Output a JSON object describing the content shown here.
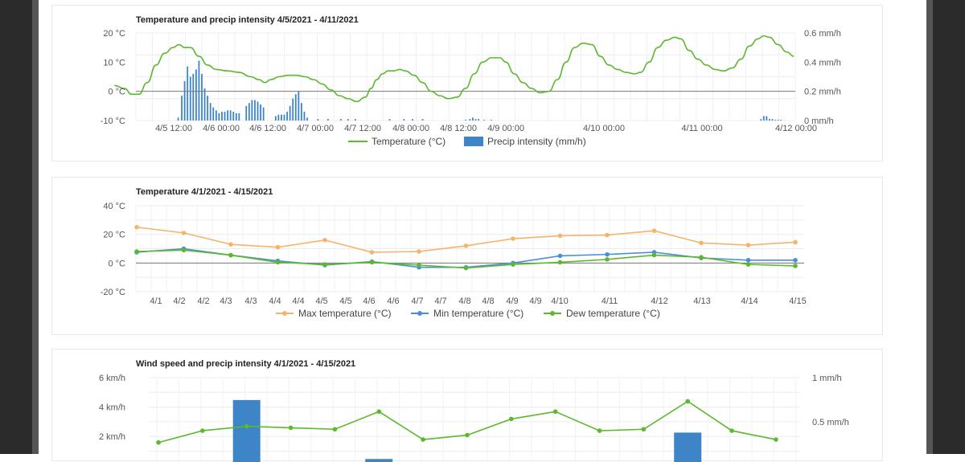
{
  "colors": {
    "temp": "#5cb82e",
    "precip": "#3d85c6",
    "max": "#f5b46b",
    "min": "#4a90d9",
    "dew": "#5cb82e"
  },
  "chart_data": [
    {
      "type": "line+bar",
      "title": "Temperature and precip intensity 4/5/2021 - 4/11/2021",
      "x_ticks": [
        "4/5 12:00",
        "4/6 00:00",
        "4/6 12:00",
        "4/7 00:00",
        "4/7 12:00",
        "4/8 00:00",
        "4/8 12:00",
        "4/9 00:00",
        "4/10 00:00",
        "4/11 00:00",
        "4/12 00:00"
      ],
      "y_left_ticks": [
        "20 °C",
        "10 °C",
        "0 °C",
        "-10 °C"
      ],
      "y_right_ticks": [
        "0.6 mm/h",
        "0.4 mm/h",
        "0.2 mm/h",
        "0 mm/h"
      ],
      "ylim_left": [
        -10,
        20
      ],
      "ylim_right": [
        0,
        0.6
      ],
      "legend": [
        "Temperature (°C)",
        "Precip intensity (mm/h)"
      ],
      "temperature": [
        [
          -15,
          2
        ],
        [
          -8,
          1
        ],
        [
          -3,
          -1
        ],
        [
          2,
          -1
        ],
        [
          8,
          3
        ],
        [
          14,
          9
        ],
        [
          20,
          13
        ],
        [
          26,
          15
        ],
        [
          30,
          16
        ],
        [
          34,
          15
        ],
        [
          38,
          15
        ],
        [
          44,
          12
        ],
        [
          50,
          9
        ],
        [
          56,
          7.5
        ],
        [
          64,
          7
        ],
        [
          72,
          6.5
        ],
        [
          80,
          5
        ],
        [
          86,
          4
        ],
        [
          90,
          3
        ],
        [
          94,
          4
        ],
        [
          100,
          5
        ],
        [
          106,
          5.5
        ],
        [
          112,
          5.5
        ],
        [
          118,
          5
        ],
        [
          124,
          4
        ],
        [
          130,
          2.5
        ],
        [
          136,
          0.5
        ],
        [
          142,
          -1.5
        ],
        [
          148,
          -2.5
        ],
        [
          154,
          -3.5
        ],
        [
          160,
          -2
        ],
        [
          164,
          1
        ],
        [
          168,
          4
        ],
        [
          172,
          6
        ],
        [
          176,
          7
        ],
        [
          180,
          7
        ],
        [
          184,
          7.5
        ],
        [
          188,
          7
        ],
        [
          194,
          5.5
        ],
        [
          200,
          3
        ],
        [
          206,
          0
        ],
        [
          212,
          -1.5
        ],
        [
          218,
          -2.5
        ],
        [
          224,
          -2
        ],
        [
          230,
          1
        ],
        [
          236,
          6
        ],
        [
          242,
          10
        ],
        [
          248,
          11.5
        ],
        [
          254,
          11.5
        ],
        [
          258,
          10
        ],
        [
          264,
          6
        ],
        [
          270,
          3
        ],
        [
          276,
          1
        ],
        [
          282,
          -0.5
        ],
        [
          288,
          0
        ],
        [
          294,
          4
        ],
        [
          300,
          10
        ],
        [
          306,
          15
        ],
        [
          312,
          16.5
        ],
        [
          318,
          16
        ],
        [
          324,
          12
        ],
        [
          330,
          9
        ],
        [
          336,
          7.5
        ],
        [
          342,
          6.5
        ],
        [
          348,
          6
        ],
        [
          352,
          6.5
        ],
        [
          358,
          10
        ],
        [
          364,
          15
        ],
        [
          370,
          17.5
        ],
        [
          376,
          18.5
        ],
        [
          380,
          18
        ],
        [
          386,
          14
        ],
        [
          392,
          11
        ],
        [
          398,
          9
        ],
        [
          404,
          7.5
        ],
        [
          410,
          7
        ],
        [
          416,
          8
        ],
        [
          422,
          11
        ],
        [
          428,
          15.5
        ],
        [
          434,
          18
        ],
        [
          438,
          19
        ],
        [
          442,
          18.5
        ],
        [
          448,
          16
        ],
        [
          454,
          13.5
        ],
        [
          459,
          12
        ]
      ],
      "precip": [
        [
          29.5,
          0.02
        ],
        [
          32,
          0.17
        ],
        [
          34,
          0.27
        ],
        [
          36,
          0.37
        ],
        [
          38,
          0.3
        ],
        [
          40,
          0.32
        ],
        [
          42,
          0.35
        ],
        [
          44,
          0.41
        ],
        [
          46,
          0.32
        ],
        [
          48,
          0.22
        ],
        [
          50,
          0.17
        ],
        [
          52,
          0.12
        ],
        [
          54,
          0.09
        ],
        [
          56,
          0.07
        ],
        [
          58,
          0.05
        ],
        [
          60,
          0.06
        ],
        [
          62,
          0.06
        ],
        [
          64,
          0.07
        ],
        [
          66,
          0.07
        ],
        [
          68,
          0.06
        ],
        [
          70,
          0.05
        ],
        [
          72,
          0.05
        ],
        [
          77,
          0.1
        ],
        [
          79,
          0.12
        ],
        [
          81,
          0.14
        ],
        [
          83,
          0.14
        ],
        [
          85,
          0.13
        ],
        [
          87,
          0.11
        ],
        [
          89,
          0.09
        ],
        [
          97.5,
          0.03
        ],
        [
          99.5,
          0.04
        ],
        [
          101.5,
          0.04
        ],
        [
          103.5,
          0.04
        ],
        [
          105.5,
          0.06
        ],
        [
          107.5,
          0.1
        ],
        [
          109.5,
          0.15
        ],
        [
          111.5,
          0.18
        ],
        [
          113.5,
          0.2
        ],
        [
          115.5,
          0.12
        ],
        [
          117.5,
          0.06
        ],
        [
          119.5,
          0.02
        ],
        [
          127,
          0.01
        ],
        [
          134,
          0.01
        ],
        [
          143,
          0.01
        ],
        [
          148,
          0.01
        ],
        [
          153,
          0.01
        ],
        [
          177,
          0.01
        ],
        [
          187,
          0.01
        ],
        [
          193,
          0.01
        ],
        [
          200,
          0.01
        ],
        [
          230,
          0.005
        ],
        [
          233,
          0.01
        ],
        [
          235,
          0.02
        ],
        [
          237,
          0.01
        ],
        [
          239,
          0.01
        ],
        [
          243,
          0.005
        ],
        [
          248,
          0.005
        ],
        [
          436,
          0.01
        ],
        [
          438,
          0.03
        ],
        [
          440,
          0.03
        ],
        [
          442,
          0.01
        ],
        [
          444,
          0.01
        ],
        [
          446,
          0.005
        ],
        [
          448,
          0.005
        ],
        [
          450,
          0.005
        ]
      ]
    },
    {
      "type": "line",
      "title": "Temperature 4/1/2021 - 4/15/2021",
      "x_ticks": [
        "4/1",
        "4/2",
        "4/2",
        "4/3",
        "4/3",
        "4/4",
        "4/4",
        "4/5",
        "4/5",
        "4/6",
        "4/6",
        "4/7",
        "4/7",
        "4/8",
        "4/8",
        "4/9",
        "4/9",
        "4/10",
        "4/11",
        "4/12",
        "4/13",
        "4/14",
        "4/15"
      ],
      "y_ticks": [
        "40 °C",
        "20 °C",
        "0 °C",
        "-20 °C"
      ],
      "ylim": [
        -20,
        40
      ],
      "legend": [
        "Max temperature (°C)",
        "Min temperature (°C)",
        "Dew temperature (°C)"
      ],
      "series": [
        {
          "name": "Max temperature (°C)",
          "points": [
            [
              1,
              25
            ],
            [
              2,
              21
            ],
            [
              3,
              13
            ],
            [
              4,
              11
            ],
            [
              5,
              16
            ],
            [
              6,
              7.5
            ],
            [
              7,
              8
            ],
            [
              8,
              12
            ],
            [
              9,
              17
            ],
            [
              10,
              19
            ],
            [
              11,
              19.5
            ],
            [
              12,
              22.5
            ],
            [
              13,
              14
            ],
            [
              14,
              12.5
            ],
            [
              15,
              14.5
            ]
          ]
        },
        {
          "name": "Min temperature (°C)",
          "points": [
            [
              1,
              7.5
            ],
            [
              2,
              10
            ],
            [
              3,
              5.5
            ],
            [
              4,
              1.5
            ],
            [
              5,
              -1.5
            ],
            [
              6,
              1
            ],
            [
              7,
              -3
            ],
            [
              8,
              -3
            ],
            [
              9,
              0
            ],
            [
              10,
              5
            ],
            [
              11,
              6
            ],
            [
              12,
              7.5
            ],
            [
              13,
              3.5
            ],
            [
              14,
              2
            ],
            [
              15,
              2
            ]
          ]
        },
        {
          "name": "Dew temperature (°C)",
          "points": [
            [
              1,
              8
            ],
            [
              2,
              9
            ],
            [
              3,
              5.5
            ],
            [
              4,
              0.5
            ],
            [
              5,
              -1
            ],
            [
              6,
              0.5
            ],
            [
              7,
              -1.5
            ],
            [
              8,
              -3.5
            ],
            [
              9,
              -1
            ],
            [
              10,
              0.5
            ],
            [
              11,
              2.5
            ],
            [
              12,
              5.5
            ],
            [
              13,
              4
            ],
            [
              14,
              -1
            ],
            [
              15,
              -2
            ]
          ]
        }
      ]
    },
    {
      "type": "line+bar",
      "title": "Wind speed and precip intensity 4/1/2021 - 4/15/2021",
      "y_left_ticks": [
        "6 km/h",
        "4 km/h",
        "2 km/h"
      ],
      "y_right_ticks": [
        "1 mm/h",
        "0.5 mm/h"
      ],
      "ylim_left": [
        0,
        6
      ],
      "ylim_right": [
        0,
        1
      ],
      "wind": [
        1.6,
        2.4,
        2.7,
        2.6,
        2.5,
        3.7,
        1.8,
        2.1,
        3.2,
        3.7,
        2.4,
        2.5,
        4.4,
        2.4,
        1.8
      ],
      "precip": [
        [
          3,
          0.75
        ],
        [
          6,
          0.08
        ],
        [
          13,
          0.38
        ]
      ]
    }
  ]
}
